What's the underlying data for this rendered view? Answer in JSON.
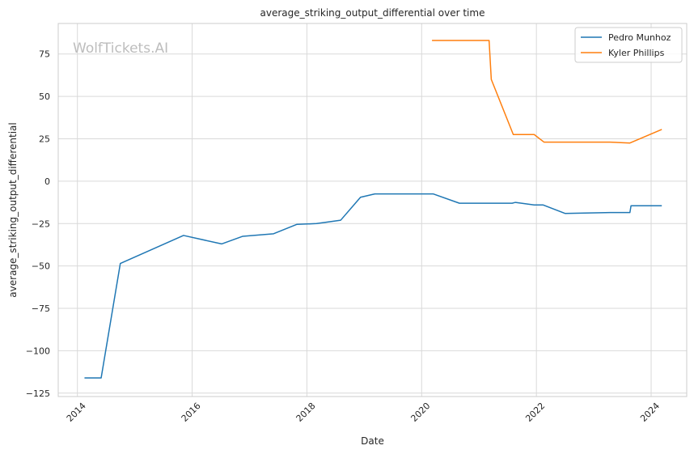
{
  "chart_data": {
    "type": "line",
    "title": "average_striking_output_differential over time",
    "xlabel": "Date",
    "ylabel": "average_striking_output_differential",
    "watermark": "WolfTickets.AI",
    "x_ticks": [
      "2014",
      "2016",
      "2018",
      "2020",
      "2022",
      "2024"
    ],
    "y_ticks": [
      "75",
      "50",
      "25",
      "0",
      "−25",
      "−50",
      "−75",
      "−100",
      "−125"
    ],
    "y_tick_values": [
      75,
      50,
      25,
      0,
      -25,
      -50,
      -75,
      -100,
      -125
    ],
    "xlim": [
      "2013-09-01",
      "2024-08-15"
    ],
    "ylim": [
      -127,
      93
    ],
    "grid": true,
    "legend_position": "top-right",
    "series": [
      {
        "name": "Pedro Munhoz",
        "color": "#1f77b4",
        "points": [
          [
            "2014-02-15",
            -116
          ],
          [
            "2014-06-01",
            -116
          ],
          [
            "2014-10-01",
            -48.5
          ],
          [
            "2015-11-07",
            -32
          ],
          [
            "2016-07-07",
            -37
          ],
          [
            "2016-11-19",
            -32.5
          ],
          [
            "2017-06-03",
            -31
          ],
          [
            "2017-10-28",
            -25.5
          ],
          [
            "2018-03-03",
            -25
          ],
          [
            "2018-08-04",
            -23
          ],
          [
            "2018-12-08",
            -9.5
          ],
          [
            "2019-03-09",
            -7.5
          ],
          [
            "2020-03-14",
            -7.5
          ],
          [
            "2020-08-29",
            -13
          ],
          [
            "2021-07-31",
            -13
          ],
          [
            "2021-08-21",
            -12.5
          ],
          [
            "2021-12-18",
            -14
          ],
          [
            "2022-02-12",
            -14
          ],
          [
            "2022-07-02",
            -19
          ],
          [
            "2023-04-15",
            -18.5
          ],
          [
            "2023-08-19",
            -18.5
          ],
          [
            "2023-08-26",
            -14.5
          ],
          [
            "2024-03-09",
            -14.5
          ]
        ]
      },
      {
        "name": "Kyler Phillips",
        "color": "#ff7f0e",
        "points": [
          [
            "2020-03-07",
            83
          ],
          [
            "2021-03-06",
            83
          ],
          [
            "2021-03-20",
            60
          ],
          [
            "2021-08-07",
            27.5
          ],
          [
            "2021-12-18",
            27.5
          ],
          [
            "2022-02-19",
            23
          ],
          [
            "2023-04-15",
            23
          ],
          [
            "2023-08-19",
            22.5
          ],
          [
            "2024-03-09",
            30.5
          ]
        ]
      }
    ]
  }
}
